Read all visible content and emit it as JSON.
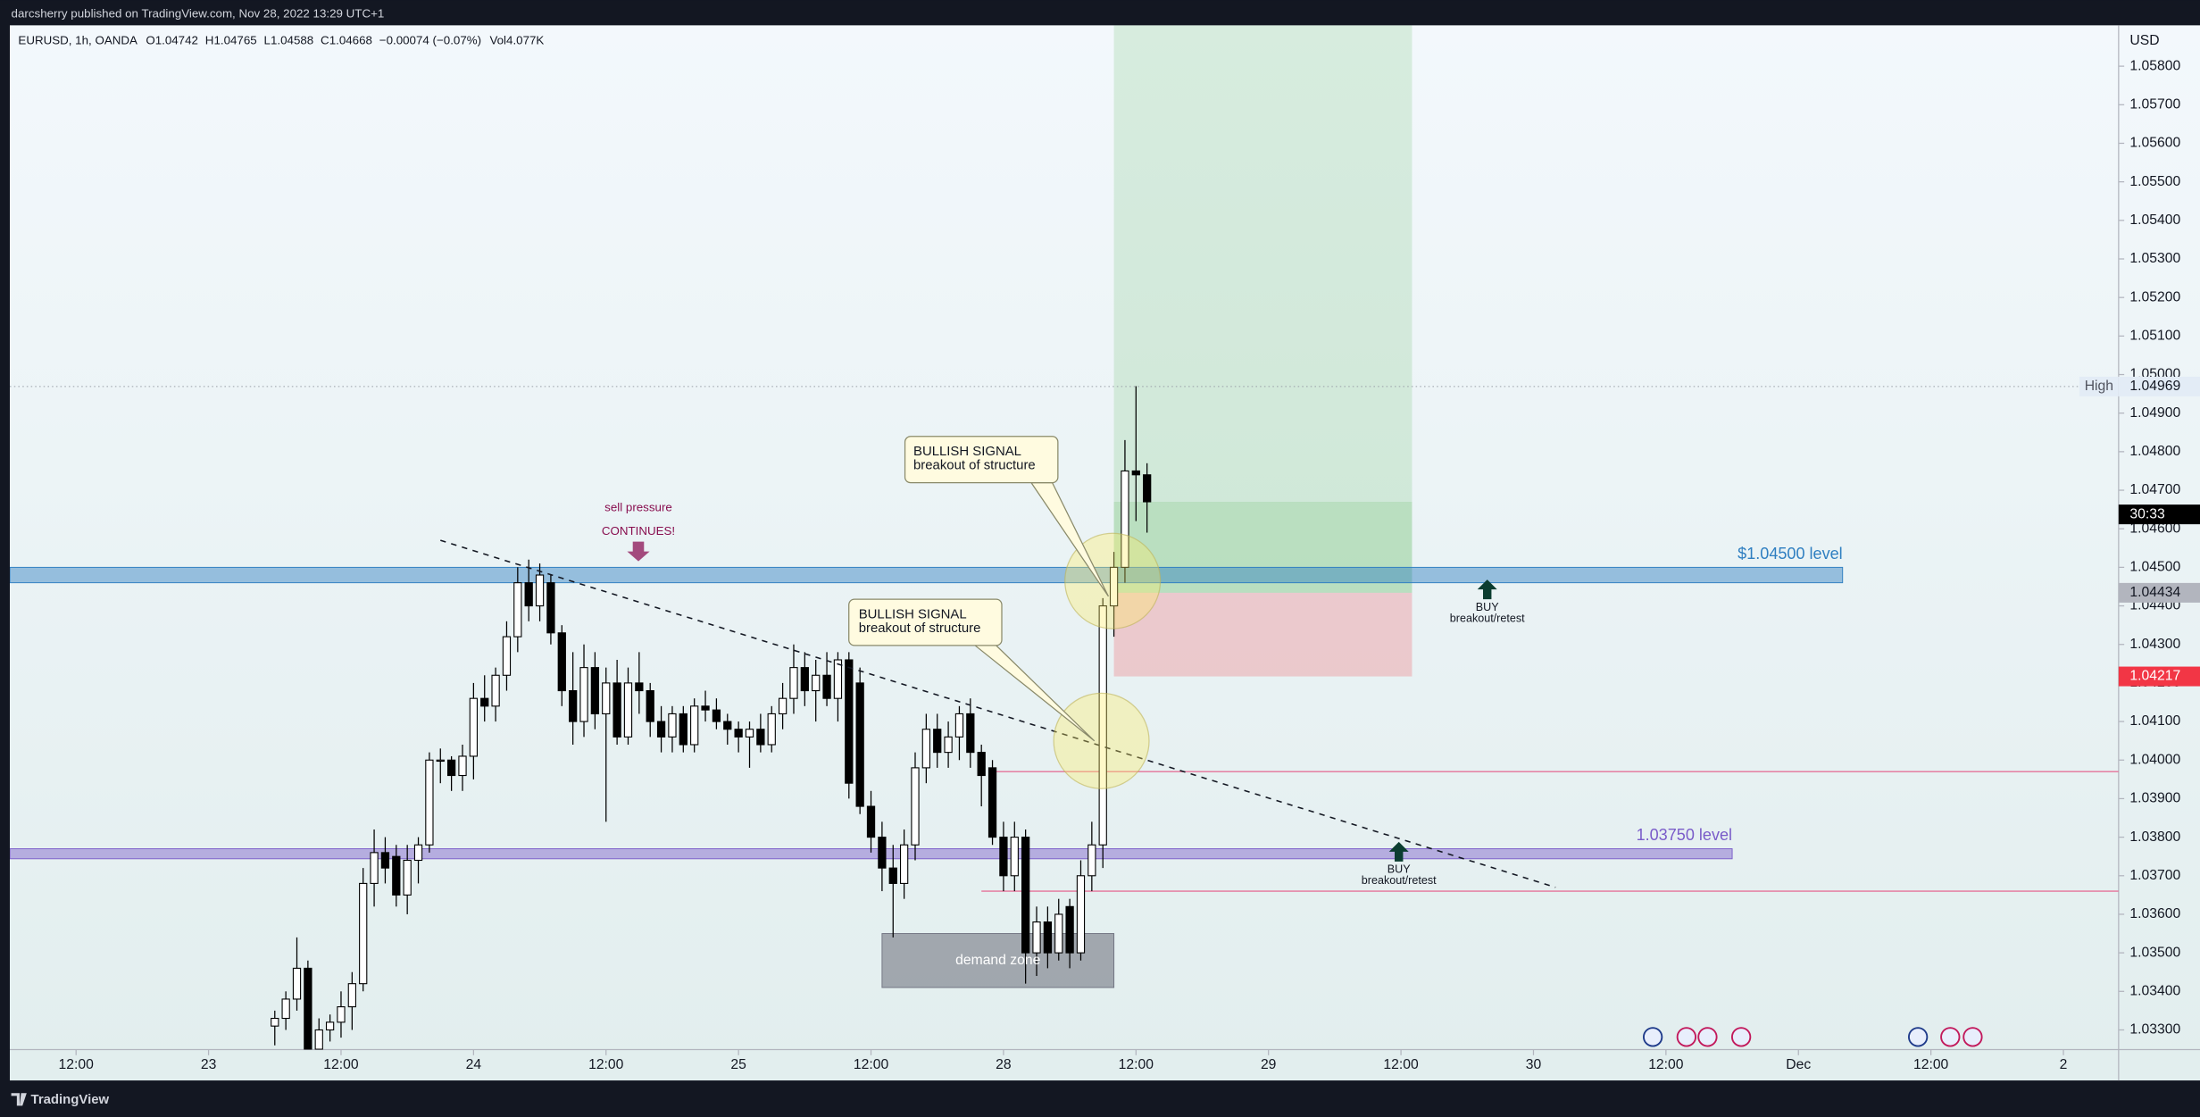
{
  "chart_data": {
    "type": "candlestick",
    "source": "darcsherry published on TradingView.com, Nov 28, 2022 13:29 UTC+1",
    "title": "EURUSD, 1h, OANDA",
    "ohlc_labels": [
      "O1.04742",
      "H1.04765",
      "L1.04588",
      "C1.04668",
      "−0.00074 (−0.07%)",
      "Vol4.077K"
    ],
    "y_axis_label": "USD",
    "footer": "TradingView",
    "up_color": "#ffffff",
    "down_color": "#000000",
    "x": [
      18,
      19,
      20,
      21,
      22,
      23,
      24,
      25,
      26,
      27,
      28,
      29,
      30,
      31,
      32,
      33,
      34,
      35,
      36,
      37,
      38,
      39,
      40,
      41,
      42,
      43,
      44,
      45,
      46,
      47,
      48,
      49,
      50,
      51,
      52,
      53,
      54,
      55,
      56,
      57,
      58,
      59,
      60,
      61,
      62,
      63,
      64,
      65,
      66,
      67,
      68,
      69,
      70,
      71,
      72,
      73,
      74,
      75,
      76,
      77,
      78,
      79,
      80,
      81,
      82,
      83,
      84,
      85,
      86,
      87,
      88,
      89,
      90,
      91,
      92,
      93,
      94,
      95,
      96,
      97
    ],
    "open": [
      1.0331,
      1.0333,
      1.0338,
      1.0346,
      1.0325,
      1.033,
      1.0332,
      1.0336,
      1.0342,
      1.0368,
      1.0376,
      1.0375,
      1.0365,
      1.0374,
      1.0378,
      1.04,
      1.04,
      1.0396,
      1.0401,
      1.0416,
      1.0414,
      1.0422,
      1.0432,
      1.0446,
      1.044,
      1.0446,
      1.0433,
      1.0418,
      1.041,
      1.0424,
      1.0412,
      1.042,
      1.0406,
      1.042,
      1.0418,
      1.041,
      1.0406,
      1.0412,
      1.0404,
      1.0414,
      1.0413,
      1.041,
      1.0408,
      1.0406,
      1.0408,
      1.0404,
      1.0412,
      1.0416,
      1.0424,
      1.0418,
      1.0422,
      1.0416,
      1.0426,
      1.042,
      1.0388,
      1.038,
      1.0372,
      1.0368,
      1.0378,
      1.0398,
      1.0408,
      1.0402,
      1.0406,
      1.0412,
      1.0402,
      1.0398,
      1.038,
      1.037,
      1.038,
      1.035,
      1.0358,
      1.035,
      1.0362,
      1.035,
      1.037,
      1.0378,
      1.044,
      1.045,
      1.0475,
      1.0474
    ],
    "high": [
      1.0335,
      1.034,
      1.0354,
      1.0348,
      1.0333,
      1.0334,
      1.034,
      1.0345,
      1.0372,
      1.0382,
      1.038,
      1.0378,
      1.0378,
      1.038,
      1.0402,
      1.0403,
      1.0401,
      1.0404,
      1.042,
      1.0422,
      1.0424,
      1.0436,
      1.045,
      1.0452,
      1.0451,
      1.0448,
      1.0435,
      1.0428,
      1.043,
      1.0428,
      1.0424,
      1.0426,
      1.0424,
      1.0428,
      1.042,
      1.0414,
      1.0414,
      1.0414,
      1.0416,
      1.0418,
      1.0416,
      1.0412,
      1.041,
      1.041,
      1.0412,
      1.0414,
      1.042,
      1.043,
      1.0428,
      1.0426,
      1.0428,
      1.0428,
      1.0428,
      1.0424,
      1.0392,
      1.0384,
      1.0378,
      1.0382,
      1.0402,
      1.0412,
      1.0412,
      1.041,
      1.0414,
      1.0416,
      1.0404,
      1.04,
      1.0384,
      1.0384,
      1.0382,
      1.0362,
      1.0362,
      1.0364,
      1.0364,
      1.0374,
      1.0384,
      1.0442,
      1.0454,
      1.0483,
      1.0497,
      1.0477
    ],
    "low": [
      1.0326,
      1.033,
      1.0335,
      1.0322,
      1.0322,
      1.0327,
      1.0328,
      1.033,
      1.034,
      1.0362,
      1.0368,
      1.0362,
      1.036,
      1.0368,
      1.0376,
      1.0394,
      1.0392,
      1.0392,
      1.0395,
      1.041,
      1.041,
      1.0418,
      1.0428,
      1.0436,
      1.0436,
      1.043,
      1.0414,
      1.0404,
      1.0406,
      1.0408,
      1.0384,
      1.0404,
      1.0404,
      1.0412,
      1.0406,
      1.0402,
      1.0402,
      1.0402,
      1.0402,
      1.041,
      1.0408,
      1.0404,
      1.0402,
      1.0398,
      1.0402,
      1.0402,
      1.0408,
      1.0412,
      1.0414,
      1.041,
      1.0414,
      1.041,
      1.039,
      1.0386,
      1.0376,
      1.0366,
      1.0354,
      1.0364,
      1.0374,
      1.0394,
      1.0398,
      1.0398,
      1.04,
      1.0398,
      1.0388,
      1.0378,
      1.0366,
      1.0366,
      1.0342,
      1.0344,
      1.0346,
      1.0348,
      1.0346,
      1.0348,
      1.0366,
      1.0372,
      1.0432,
      1.0446,
      1.0462,
      1.0459
    ],
    "close": [
      1.0333,
      1.0338,
      1.0346,
      1.0325,
      1.033,
      1.0332,
      1.0336,
      1.0342,
      1.0368,
      1.0376,
      1.0372,
      1.0365,
      1.0374,
      1.0378,
      1.04,
      1.04,
      1.0396,
      1.0401,
      1.0416,
      1.0414,
      1.0422,
      1.0432,
      1.0446,
      1.044,
      1.0448,
      1.0433,
      1.0418,
      1.041,
      1.0424,
      1.0412,
      1.042,
      1.0406,
      1.042,
      1.0418,
      1.041,
      1.0406,
      1.0412,
      1.0404,
      1.0414,
      1.0413,
      1.041,
      1.0408,
      1.0406,
      1.0408,
      1.0404,
      1.0412,
      1.0416,
      1.0424,
      1.0418,
      1.0422,
      1.0416,
      1.0426,
      1.0394,
      1.0388,
      1.038,
      1.0372,
      1.0368,
      1.0378,
      1.0398,
      1.0408,
      1.0402,
      1.0406,
      1.0412,
      1.0402,
      1.0396,
      1.038,
      1.037,
      1.038,
      1.035,
      1.0358,
      1.035,
      1.036,
      1.035,
      1.037,
      1.0378,
      1.044,
      1.045,
      1.0475,
      1.0474,
      1.0467
    ],
    "xlim": [
      -6,
      185
    ],
    "xticks": [
      {
        "value": 0,
        "label": "12:00"
      },
      {
        "value": 12,
        "label": "23"
      },
      {
        "value": 24,
        "label": "12:00"
      },
      {
        "value": 36,
        "label": "24"
      },
      {
        "value": 48,
        "label": "12:00"
      },
      {
        "value": 60,
        "label": "25"
      },
      {
        "value": 72,
        "label": "12:00"
      },
      {
        "value": 84,
        "label": "28"
      },
      {
        "value": 96,
        "label": "12:00"
      },
      {
        "value": 108,
        "label": "29"
      },
      {
        "value": 120,
        "label": "12:00"
      },
      {
        "value": 132,
        "label": "30"
      },
      {
        "value": 144,
        "label": "12:00"
      },
      {
        "value": 156,
        "label": "Dec"
      },
      {
        "value": 168,
        "label": "12:00"
      },
      {
        "value": 180,
        "label": "2"
      }
    ],
    "ylim": [
      1.03249,
      1.05906
    ],
    "yticks": [
      {
        "value": 1.033,
        "label": "1.03300"
      },
      {
        "value": 1.034,
        "label": "1.03400"
      },
      {
        "value": 1.035,
        "label": "1.03500"
      },
      {
        "value": 1.036,
        "label": "1.03600"
      },
      {
        "value": 1.037,
        "label": "1.03700"
      },
      {
        "value": 1.038,
        "label": "1.03800"
      },
      {
        "value": 1.039,
        "label": "1.03900"
      },
      {
        "value": 1.04,
        "label": "1.04000"
      },
      {
        "value": 1.041,
        "label": "1.04100"
      },
      {
        "value": 1.042,
        "label": "1.04200"
      },
      {
        "value": 1.043,
        "label": "1.04300"
      },
      {
        "value": 1.044,
        "label": "1.04400"
      },
      {
        "value": 1.045,
        "label": "1.04500"
      },
      {
        "value": 1.046,
        "label": "1.04600"
      },
      {
        "value": 1.047,
        "label": "1.04700"
      },
      {
        "value": 1.048,
        "label": "1.04800"
      },
      {
        "value": 1.049,
        "label": "1.04900"
      },
      {
        "value": 1.05,
        "label": "1.05000"
      },
      {
        "value": 1.051,
        "label": "1.05100"
      },
      {
        "value": 1.052,
        "label": "1.05200"
      },
      {
        "value": 1.053,
        "label": "1.05300"
      },
      {
        "value": 1.054,
        "label": "1.05400"
      },
      {
        "value": 1.055,
        "label": "1.05500"
      },
      {
        "value": 1.056,
        "label": "1.05600"
      },
      {
        "value": 1.057,
        "label": "1.05700"
      },
      {
        "value": 1.058,
        "label": "1.05800"
      }
    ],
    "high_marker": {
      "label": "High",
      "value": 1.04969
    },
    "countdown": "30:33",
    "levels": [
      {
        "label": "$1.04500 level",
        "low": 1.0446,
        "high": 1.045,
        "end": 160,
        "color": "#2f7fc1"
      },
      {
        "label": "1.03750 level",
        "low": 1.03744,
        "high": 1.0377,
        "end": 150,
        "color": "#7a5cc9"
      }
    ],
    "lines": [
      {
        "value": 1.0397,
        "start": 83
      },
      {
        "value": 1.0366,
        "start": 82
      }
    ],
    "position": {
      "start": 94,
      "end": 121,
      "entry": 1.04434,
      "stop": 1.04217,
      "target": 1.0595
    },
    "demand_zone": {
      "label": "demand zone",
      "start": 73,
      "end": 94,
      "high": 1.0355,
      "low": 1.0341
    },
    "trendline": {
      "from": [
        33,
        1.0457
      ],
      "to": [
        134,
        1.0367
      ]
    },
    "callouts": [
      {
        "title": "BULLISH SIGNAL",
        "text": "breakout of structure"
      },
      {
        "title": "BULLISH SIGNAL",
        "text": "breakout of structure"
      }
    ],
    "sell_note": [
      "sell pressure",
      "CONTINUES!"
    ],
    "buy_notes": [
      {
        "title": "BUY",
        "text": "breakout/retest"
      },
      {
        "title": "BUY",
        "text": "breakout/retest"
      }
    ]
  }
}
